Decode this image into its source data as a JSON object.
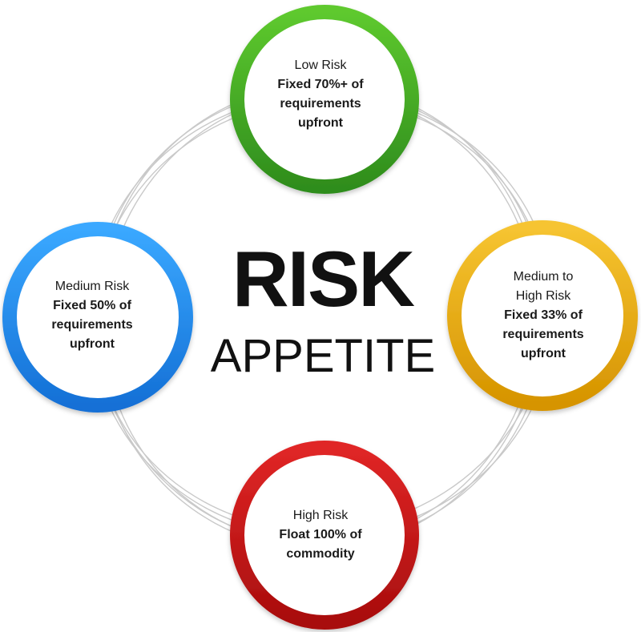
{
  "center": {
    "line1": "RISK",
    "line2": "APPETITE"
  },
  "nodes": [
    {
      "id": "low",
      "level": "Low Risk",
      "policy": "Fixed 70%+ of requirements upfront",
      "color": "#3aa52a"
    },
    {
      "id": "medium",
      "level": "Medium Risk",
      "policy": "Fixed 50% of requirements upfront",
      "color": "#1e8ff0"
    },
    {
      "id": "medium-high",
      "level": "Medium to High Risk",
      "policy": "Fixed 33% of requirements upfront",
      "color": "#e5a90e"
    },
    {
      "id": "high",
      "level": "High Risk",
      "policy": "Float 100% of commodity",
      "color": "#c81414"
    }
  ]
}
